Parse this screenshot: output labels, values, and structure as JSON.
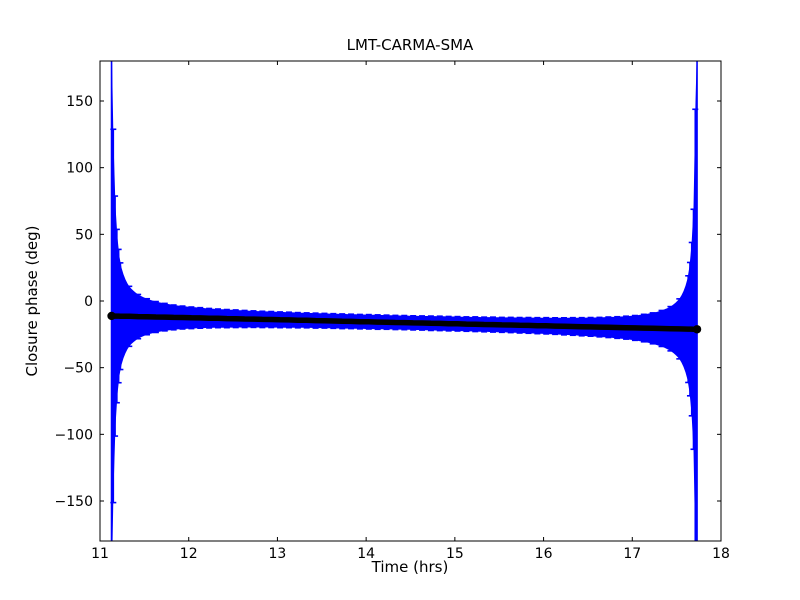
{
  "figure": {
    "background": "#ffffff"
  },
  "chart_data": {
    "type": "line",
    "subtype": "errorbar-line",
    "title": "LMT-CARMA-SMA",
    "xlabel": "Time (hrs)",
    "ylabel": "Closure phase (deg)",
    "xlim": [
      11,
      18
    ],
    "ylim": [
      -180,
      180
    ],
    "xticks": [
      11,
      12,
      13,
      14,
      15,
      16,
      17,
      18
    ],
    "yticks": [
      -150,
      -100,
      -50,
      0,
      50,
      100,
      150
    ],
    "grid": false,
    "legend": null,
    "colors": {
      "errorbar": "#0000ff",
      "data_line": "#000000",
      "frame": "#000000",
      "text": "#000000",
      "background": "#ffffff"
    },
    "series": [
      {
        "name": "closure phase LMT-CARMA-SMA",
        "t": [
          11.13,
          11.15,
          11.17,
          11.19,
          11.21,
          11.23,
          11.33,
          11.43,
          11.53,
          11.63,
          11.73,
          11.83,
          11.93,
          12.03,
          12.13,
          12.23,
          12.33,
          12.43,
          12.53,
          12.63,
          12.73,
          12.83,
          12.93,
          13.03,
          13.13,
          13.23,
          13.33,
          13.43,
          13.53,
          13.63,
          13.73,
          13.83,
          13.93,
          14.03,
          14.13,
          14.23,
          14.33,
          14.43,
          14.53,
          14.63,
          14.73,
          14.83,
          14.93,
          15.03,
          15.13,
          15.23,
          15.33,
          15.43,
          15.53,
          15.63,
          15.73,
          15.83,
          15.93,
          16.03,
          16.13,
          16.23,
          16.33,
          16.43,
          16.53,
          16.63,
          16.73,
          16.83,
          16.93,
          17.03,
          17.13,
          17.23,
          17.33,
          17.43,
          17.53,
          17.63,
          17.65,
          17.67,
          17.69,
          17.71,
          17.73
        ],
        "phase": [
          -11.2,
          -11.2,
          -11.3,
          -11.3,
          -11.3,
          -11.4,
          -11.5,
          -11.7,
          -11.8,
          -12.0,
          -12.1,
          -12.3,
          -12.4,
          -12.6,
          -12.7,
          -12.9,
          -13.0,
          -13.2,
          -13.3,
          -13.5,
          -13.6,
          -13.8,
          -13.9,
          -14.1,
          -14.2,
          -14.4,
          -14.5,
          -14.7,
          -14.8,
          -15.0,
          -15.2,
          -15.3,
          -15.5,
          -15.6,
          -15.8,
          -15.9,
          -16.1,
          -16.2,
          -16.4,
          -16.5,
          -16.7,
          -16.8,
          -17.0,
          -17.1,
          -17.3,
          -17.4,
          -17.6,
          -17.7,
          -17.9,
          -18.0,
          -18.2,
          -18.3,
          -18.5,
          -18.6,
          -18.8,
          -19.0,
          -19.1,
          -19.3,
          -19.4,
          -19.6,
          -19.7,
          -19.9,
          -20.0,
          -20.2,
          -20.3,
          -20.5,
          -20.6,
          -20.8,
          -20.9,
          -21.1,
          -21.1,
          -21.1,
          -21.2,
          -21.2,
          -21.2
        ],
        "sigma": [
          213,
          140,
          90,
          65,
          50,
          40,
          22.5,
          16.6,
          13.5,
          11.6,
          10.3,
          9.3,
          8.6,
          8.1,
          7.7,
          7.3,
          7.0,
          6.8,
          6.6,
          6.4,
          6.2,
          6.1,
          6.0,
          5.9,
          5.8,
          5.7,
          5.6,
          5.6,
          5.5,
          5.5,
          5.5,
          5.4,
          5.4,
          5.4,
          5.4,
          5.3,
          5.3,
          5.3,
          5.3,
          5.3,
          5.4,
          5.4,
          5.4,
          5.4,
          5.4,
          5.5,
          5.5,
          5.6,
          5.6,
          5.7,
          5.8,
          5.9,
          6.0,
          6.1,
          6.2,
          6.4,
          6.6,
          6.8,
          7.0,
          7.3,
          7.7,
          8.1,
          8.6,
          9.3,
          10.3,
          11.6,
          13.5,
          16.6,
          22.5,
          40,
          50,
          65,
          90,
          165,
          213
        ]
      }
    ]
  }
}
